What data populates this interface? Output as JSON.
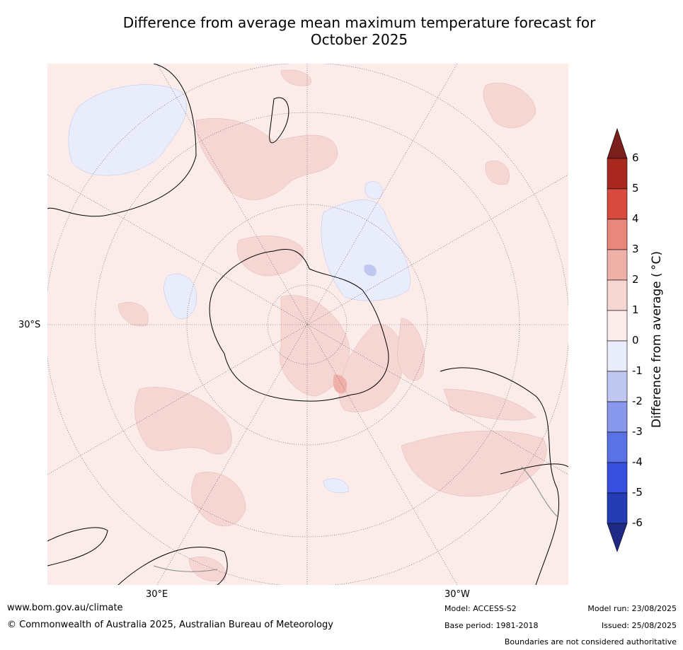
{
  "title_line1": "Difference from average mean maximum temperature forecast for",
  "title_line2": "October 2025",
  "map": {
    "projection": "south polar stereographic",
    "lat_label": "30°S",
    "lon_labels": [
      "30°E",
      "30°W"
    ],
    "grid": true
  },
  "colorbar": {
    "label": "Difference from average ( °C)",
    "ticks": [
      "6",
      "5",
      "4",
      "3",
      "2",
      "1",
      "0",
      "-1",
      "-2",
      "-3",
      "-4",
      "-5",
      "-6"
    ],
    "colors": {
      "above_6": "#7a1f1b",
      "5_6": "#a8281f",
      "4_5": "#d84a3e",
      "3_4": "#e8877c",
      "2_3": "#efb0a7",
      "1_2": "#f5d6d3",
      "0_1": "#fbecea",
      "m1_0": "#e8ecfb",
      "m2_m1": "#c0c8f2",
      "m3_m2": "#8898ec",
      "m4_m3": "#5b72e6",
      "m5_m4": "#3950de",
      "m6_m5": "#263cb4",
      "below_m6": "#1e2a84"
    }
  },
  "footer": {
    "website": "www.bom.gov.au/climate",
    "copyright": "© Commonwealth of Australia 2025, Australian Bureau of Meteorology",
    "model": "Model: ACCESS-S2",
    "base_period": "Base period: 1981-2018",
    "model_run": "Model run: 23/08/2025",
    "issued": "Issued: 25/08/2025",
    "disclaimer": "Boundaries are not considered authoritative"
  }
}
